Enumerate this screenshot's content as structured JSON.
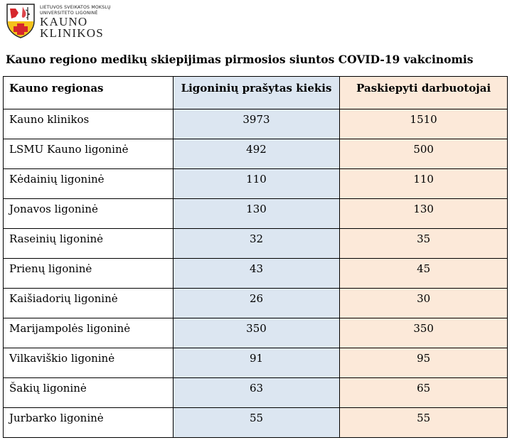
{
  "logo": {
    "line1": "LIETUVOS SVEIKATOS MOKSLŲ",
    "line2": "UNIVERSITETO LIGONINĖ",
    "line3": "KAUNO",
    "line4": "KLINIKOS",
    "icon": "shield-cross-emblem",
    "colors": {
      "red": "#d6262c",
      "yellow": "#f4c21b",
      "dark": "#222222"
    }
  },
  "title": "Kauno regiono medikų skiepijimas pirmosios siuntos COVID-19 vakcinomis",
  "table": {
    "headers": [
      "Kauno regionas",
      "Ligoninių prašytas kiekis",
      "Paskiepyti darbuotojai"
    ],
    "rows": [
      [
        "Kauno klinikos",
        "3973",
        "1510"
      ],
      [
        "LSMU Kauno ligoninė",
        "492",
        "500"
      ],
      [
        "Kėdainių ligoninė",
        "110",
        "110"
      ],
      [
        "Jonavos ligoninė",
        "130",
        "130"
      ],
      [
        "Raseinių ligoninė",
        "32",
        "35"
      ],
      [
        "Prienų ligoninė",
        "43",
        "45"
      ],
      [
        "Kaišiadorių ligoninė",
        "26",
        "30"
      ],
      [
        "Marijampolės ligoninė",
        "350",
        "350"
      ],
      [
        "Vilkaviškio ligoninė",
        "91",
        "95"
      ],
      [
        "Šakių ligoninė",
        "63",
        "65"
      ],
      [
        "Jurbarko ligoninė",
        "55",
        "55"
      ]
    ],
    "colors": {
      "requested_column": "#dce6f1",
      "vaccinated_column": "#fce9d9"
    }
  }
}
